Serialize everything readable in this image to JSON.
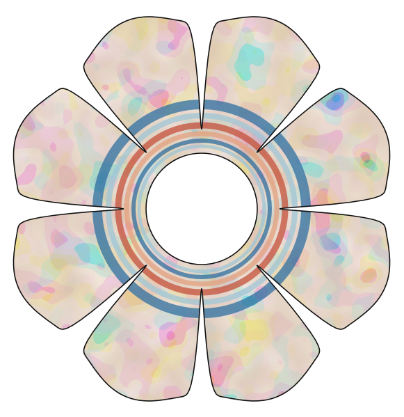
{
  "figure": {
    "lobe_count": 8,
    "palette": {
      "deep_blue": "#0b2f5e",
      "blue": "#2f6fa0",
      "light_blue": "#9fc6d6",
      "pale": "#e9d7c3",
      "salmon": "#e3a07f",
      "red": "#c4503a",
      "dark_red": "#8f1d18",
      "outline": "#111111",
      "background": "#ffffff"
    }
  }
}
